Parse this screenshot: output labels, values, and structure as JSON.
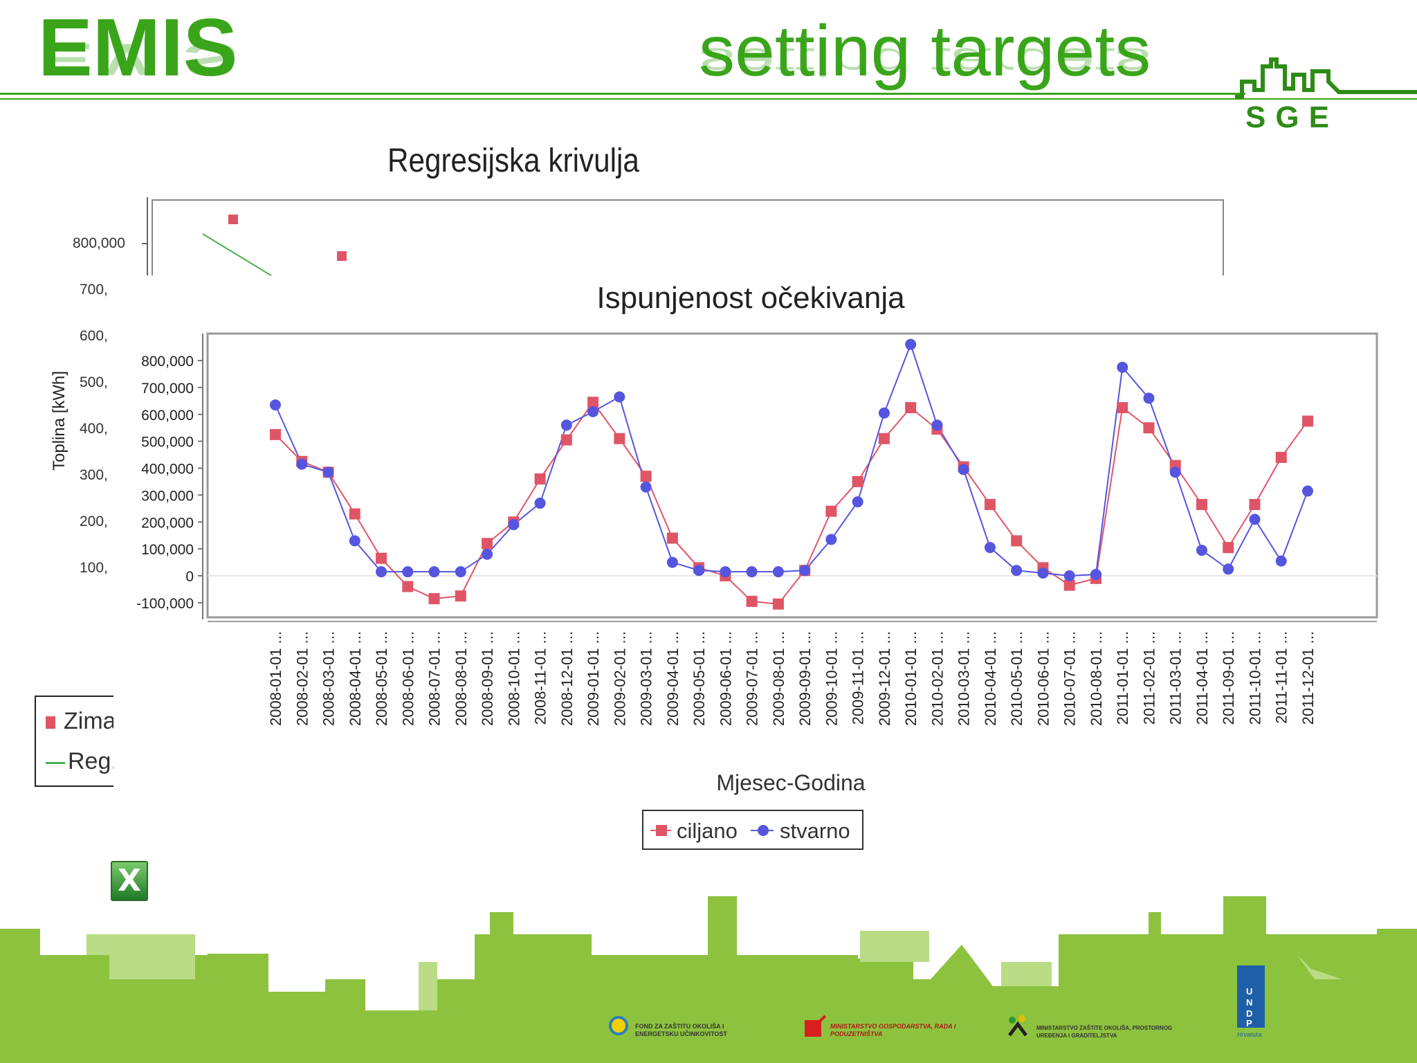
{
  "header": {
    "brand": "EMIS",
    "title": "setting targets",
    "logo_text": "SGE"
  },
  "colors": {
    "accent_green": "#3aa51a",
    "ciljano": "#e05566",
    "stvarno": "#5555e0",
    "regression_line": "#4caf50"
  },
  "background_chart": {
    "title": "Regresijska krivulja",
    "ylabel": "Toplina [kWh]",
    "ytick_top": "800,000",
    "ytick_partial": [
      "700,",
      "600,",
      "500,",
      "400,",
      "300,",
      "200,",
      "100,"
    ],
    "legend": [
      "Zima",
      "Reg."
    ]
  },
  "footer": {
    "sponsor1": "FOND ZA ZAŠTITU OKOLIŠA I ENERGETSKU UČINKOVITOST",
    "sponsor2": "MINISTARSTVO GOSPODARSTVA, RADA I PODUZETNIŠTVA",
    "sponsor3": "MINISTARSTVO ZAŠTITE OKOLIŠA, PROSTORNOG UREĐENJA I GRADITELJSTVA",
    "undp": [
      "U",
      "N",
      "D",
      "P"
    ],
    "undp_sub": "Hrvatska"
  },
  "chart_data": [
    {
      "type": "scatter",
      "title": "Regresijska krivulja",
      "ylabel": "Toplina [kWh]",
      "series": [
        {
          "name": "Zima",
          "points": [
            [
              1,
              850000
            ],
            [
              2,
              775000
            ]
          ]
        },
        {
          "name": "Reg.",
          "points": [
            [
              0.6,
              820000
            ],
            [
              1.6,
              762000
            ]
          ]
        }
      ]
    },
    {
      "type": "line",
      "title": "Ispunjenost očekivanja",
      "xlabel": "Mjesec-Godina",
      "ylabel": "",
      "ylim": [
        -100000,
        850000
      ],
      "yticks": [
        -100000,
        0,
        100000,
        200000,
        300000,
        400000,
        500000,
        600000,
        700000,
        800000
      ],
      "ytick_labels": [
        "-100,000",
        "0",
        "100,000",
        "200,000",
        "300,000",
        "400,000",
        "500,000",
        "600,000",
        "700,000",
        "800,000"
      ],
      "categories": [
        "2008-01-01 ...",
        "2008-02-01 ...",
        "2008-03-01 ...",
        "2008-04-01 ...",
        "2008-05-01 ...",
        "2008-06-01 ...",
        "2008-07-01 ...",
        "2008-08-01 ...",
        "2008-09-01 ...",
        "2008-10-01 ...",
        "2008-11-01 ...",
        "2008-12-01 ...",
        "2009-01-01 ...",
        "2009-02-01 ...",
        "2009-03-01 ...",
        "2009-04-01 ...",
        "2009-05-01 ...",
        "2009-06-01 ...",
        "2009-07-01 ...",
        "2009-08-01 ...",
        "2009-09-01 ...",
        "2009-10-01 ...",
        "2009-11-01 ...",
        "2009-12-01 ...",
        "2010-01-01 ...",
        "2010-02-01 ...",
        "2010-03-01 ...",
        "2010-04-01 ...",
        "2010-05-01 ...",
        "2010-06-01 ...",
        "2010-07-01 ...",
        "2010-08-01 ...",
        "2011-01-01 ...",
        "2011-02-01 ...",
        "2011-03-01 ...",
        "2011-04-01 ...",
        "2011-09-01 ...",
        "2011-10-01 ...",
        "2011-11-01 ...",
        "2011-12-01 ..."
      ],
      "legend_position": "bottom",
      "grid": false,
      "series": [
        {
          "name": "ciljano",
          "marker": "square",
          "values": [
            525000,
            425000,
            385000,
            230000,
            65000,
            -40000,
            -85000,
            -75000,
            120000,
            200000,
            360000,
            505000,
            645000,
            510000,
            370000,
            140000,
            30000,
            0,
            -95000,
            -105000,
            20000,
            240000,
            350000,
            510000,
            625000,
            545000,
            405000,
            265000,
            130000,
            30000,
            -35000,
            -10000,
            625000,
            550000,
            410000,
            265000,
            105000,
            265000,
            440000,
            575000
          ]
        },
        {
          "name": "stvarno",
          "marker": "circle",
          "values": [
            635000,
            415000,
            385000,
            130000,
            15000,
            15000,
            15000,
            15000,
            80000,
            190000,
            270000,
            560000,
            610000,
            665000,
            330000,
            50000,
            20000,
            15000,
            15000,
            15000,
            20000,
            135000,
            275000,
            605000,
            860000,
            560000,
            395000,
            105000,
            20000,
            10000,
            0,
            5000,
            775000,
            660000,
            385000,
            95000,
            25000,
            210000,
            55000,
            315000
          ]
        }
      ]
    }
  ]
}
